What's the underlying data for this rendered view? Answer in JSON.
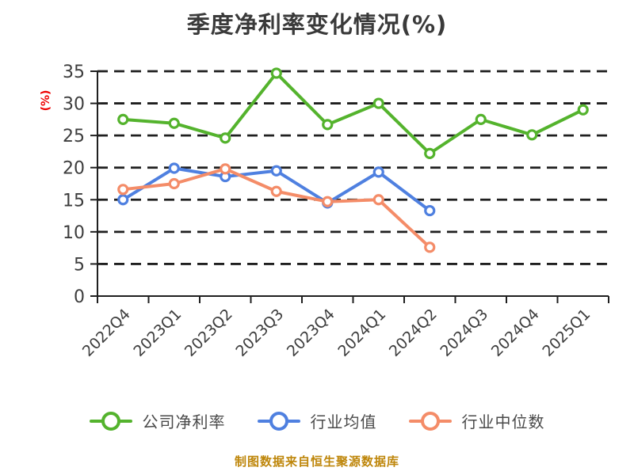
{
  "title": "季度净利率变化情况(%)",
  "y_axis_label": "(%)",
  "footer": "制图数据来自恒生聚源数据库",
  "colors": {
    "background": "#ffffff",
    "title_text": "#3a3a3a",
    "axis": "#1f1f1f",
    "gridline": "#1f1f1f",
    "tick_label": "#3d3d3d",
    "y_axis_label": "#ee0000",
    "legend_text": "#4a4a4a",
    "footer_text": "#be860a",
    "marker_fill": "#ffffff"
  },
  "chart_data": {
    "type": "line",
    "title": "季度净利率变化情况(%)",
    "ylabel": "(%)",
    "xlabel": "",
    "categories": [
      "2022Q4",
      "2023Q1",
      "2023Q2",
      "2023Q3",
      "2023Q4",
      "2024Q1",
      "2024Q2",
      "2024Q3",
      "2024Q4",
      "2025Q1"
    ],
    "series": [
      {
        "name": "公司净利率",
        "color": "#54b32d",
        "values": [
          27.5,
          26.9,
          24.6,
          34.7,
          26.7,
          30.0,
          22.2,
          27.5,
          25.1,
          29.0
        ]
      },
      {
        "name": "行业均值",
        "color": "#4f80e0",
        "values": [
          15.0,
          19.9,
          18.6,
          19.5,
          14.5,
          19.3,
          13.3,
          null,
          null,
          null
        ]
      },
      {
        "name": "行业中位数",
        "color": "#f48c68",
        "values": [
          16.6,
          17.5,
          19.8,
          16.3,
          14.7,
          15.0,
          7.6,
          null,
          null,
          null
        ]
      }
    ],
    "ylim": [
      0,
      35
    ],
    "ytick_step": 5,
    "grid": true,
    "grid_style": "dashed",
    "x_tick_rotation": 45,
    "legend_position": "bottom"
  }
}
